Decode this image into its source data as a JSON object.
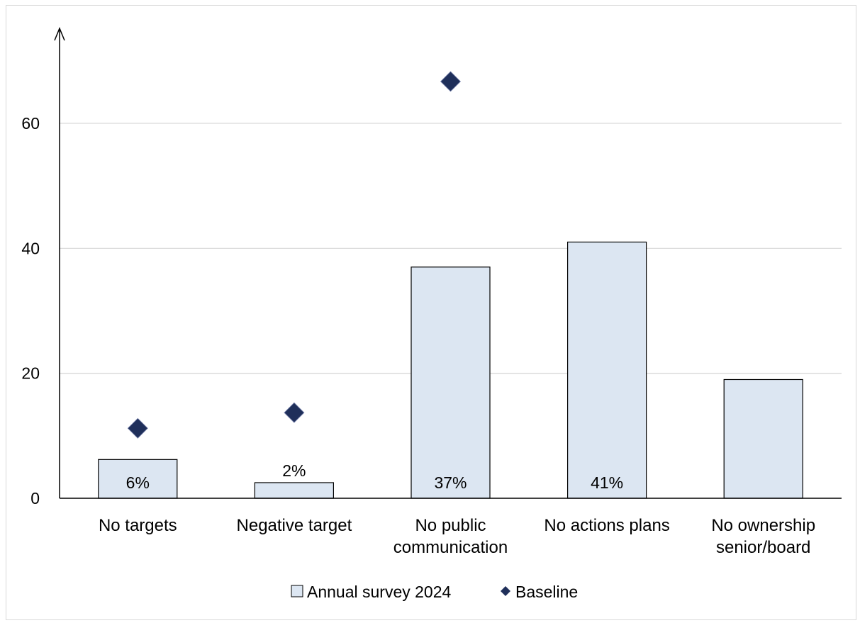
{
  "colors": {
    "bar_fill": "#dce6f2",
    "bar_stroke": "#000000",
    "marker_fill": "#1f2f5a",
    "grid": "#d9d9d9"
  },
  "chart_data": {
    "type": "bar",
    "title": "",
    "xlabel": "",
    "ylabel": "",
    "ylim": [
      0,
      70
    ],
    "yticks": [
      0,
      20,
      40,
      60
    ],
    "grid": true,
    "legend_position": "bottom",
    "categories": [
      [
        "No targets"
      ],
      [
        "Negative target"
      ],
      [
        "No public",
        "communication"
      ],
      [
        "No actions plans"
      ],
      [
        "No ownership",
        "senior/board"
      ]
    ],
    "series": [
      {
        "name": "Annual survey 2024",
        "type": "bar",
        "values": [
          6.2,
          2.5,
          37,
          41,
          19
        ],
        "labels": [
          "6%",
          "2%",
          "37%",
          "41%",
          ""
        ],
        "label_positions": [
          "inside",
          "above",
          "inside",
          "inside",
          "none"
        ]
      },
      {
        "name": "Baseline",
        "type": "scatter",
        "marker": "diamond",
        "values": [
          11.2,
          13.7,
          66.7,
          null,
          null
        ]
      }
    ]
  }
}
